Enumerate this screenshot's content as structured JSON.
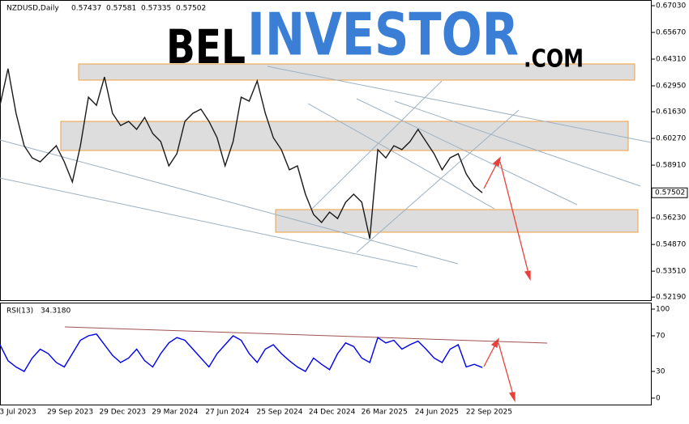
{
  "logo": {
    "left": "BEL",
    "middle": "INVESTOR",
    "right": ".COM"
  },
  "chart_data": [
    {
      "type": "line",
      "title": "NZDUSD,Daily",
      "ohlc": [
        0.57437,
        0.57581,
        0.57335,
        0.57502
      ],
      "color": "#1a1a1a",
      "values": [
        0.6196,
        0.6382,
        0.6155,
        0.599,
        0.5928,
        0.5908,
        0.5949,
        0.599,
        0.5908,
        0.5805,
        0.599,
        0.6237,
        0.6196,
        0.634,
        0.6155,
        0.6093,
        0.6114,
        0.6073,
        0.6134,
        0.6052,
        0.6011,
        0.5887,
        0.5949,
        0.6114,
        0.6155,
        0.6176,
        0.6114,
        0.6031,
        0.5887,
        0.6011,
        0.6237,
        0.6217,
        0.632,
        0.6155,
        0.6031,
        0.597,
        0.5867,
        0.5887,
        0.5743,
        0.564,
        0.5599,
        0.5652,
        0.5619,
        0.5702,
        0.5743,
        0.5702,
        0.5516,
        0.597,
        0.5928,
        0.599,
        0.597,
        0.6011,
        0.6073,
        0.6011,
        0.5949,
        0.5867,
        0.5928,
        0.5949,
        0.5846,
        0.5784,
        0.57502
      ],
      "ylim": [
        0.5199,
        0.6732
      ],
      "yticks": [
        {
          "value": 0.6703,
          "label": "0.67030"
        },
        {
          "value": 0.6567,
          "label": "0.65670"
        },
        {
          "value": 0.6431,
          "label": "0.64310"
        },
        {
          "value": 0.6295,
          "label": "0.62950"
        },
        {
          "value": 0.6163,
          "label": "0.61630"
        },
        {
          "value": 0.6027,
          "label": "0.60270"
        },
        {
          "value": 0.5891,
          "label": "0.58910"
        },
        {
          "value": 0.5623,
          "label": "0.56230"
        },
        {
          "value": 0.5487,
          "label": "0.54870"
        },
        {
          "value": 0.5351,
          "label": "0.53510"
        },
        {
          "value": 0.5219,
          "label": "0.52190"
        }
      ],
      "x_labels": [
        "3 Jul 2023",
        "29 Sep 2023",
        "29 Dec 2023",
        "29 Mar 2024",
        "27 Jun 2024",
        "25 Sep 2024",
        "24 Dec 2024",
        "26 Mar 2025",
        "24 Jun 2025",
        "22 Sep 2025"
      ]
    },
    {
      "type": "line",
      "title": "RSI(13)",
      "last_value": 34.318,
      "value_label": "34.3180",
      "color": "#0000ee",
      "values": [
        60,
        42,
        35,
        30,
        45,
        55,
        50,
        40,
        35,
        50,
        65,
        70,
        72,
        60,
        48,
        40,
        45,
        55,
        42,
        35,
        50,
        62,
        68,
        65,
        55,
        45,
        35,
        50,
        60,
        70,
        65,
        50,
        40,
        55,
        60,
        50,
        42,
        35,
        30,
        45,
        38,
        32,
        50,
        62,
        58,
        45,
        40,
        68,
        62,
        65,
        55,
        60,
        64,
        55,
        45,
        40,
        55,
        60,
        35,
        38,
        34.318
      ],
      "ylim": [
        -7.3,
        107.3
      ],
      "yticks": [
        0,
        30,
        70,
        100
      ]
    }
  ]
}
